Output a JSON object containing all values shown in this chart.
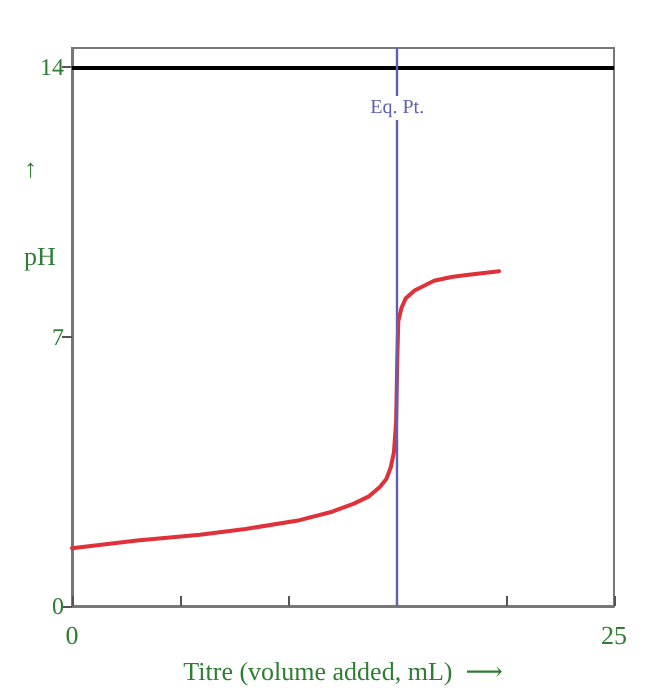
{
  "chart_data": {
    "type": "line",
    "xlabel": "Titre (volume added, mL)  ⟶",
    "ylabel": "↑\npH",
    "series": [
      {
        "color": "#e0303a",
        "x": [
          0,
          3,
          5.9,
          8,
          10.5,
          12,
          13,
          13.7,
          14.2,
          14.5,
          14.7,
          14.85,
          14.95,
          15,
          15.05,
          15.2,
          15.4,
          15.8,
          16.7,
          17.5,
          18.2,
          19.7
        ],
        "values": [
          1.5,
          1.7,
          1.85,
          2.0,
          2.23,
          2.45,
          2.66,
          2.85,
          3.09,
          3.3,
          3.6,
          4.0,
          4.8,
          6.3,
          7.4,
          7.75,
          8.0,
          8.2,
          8.45,
          8.55,
          8.6,
          8.7
        ]
      }
    ],
    "xlim": [
      0,
      25
    ],
    "ylim": [
      0,
      14.5
    ],
    "xticks": [
      0,
      {
        "value": 5,
        "label": null
      },
      {
        "value": 10,
        "label": null
      },
      {
        "value": 15,
        "label": null
      },
      {
        "value": 20,
        "label": null
      },
      25
    ],
    "yticks": [
      0,
      7,
      14
    ],
    "ref_lines": [
      {
        "axis": "y",
        "value": 14,
        "color": "#000000"
      },
      {
        "axis": "x",
        "value": 15,
        "label": "Eq. Pt.",
        "color": "#6060b0"
      }
    ],
    "grid": false,
    "marker": "none",
    "line_style": "solid"
  }
}
